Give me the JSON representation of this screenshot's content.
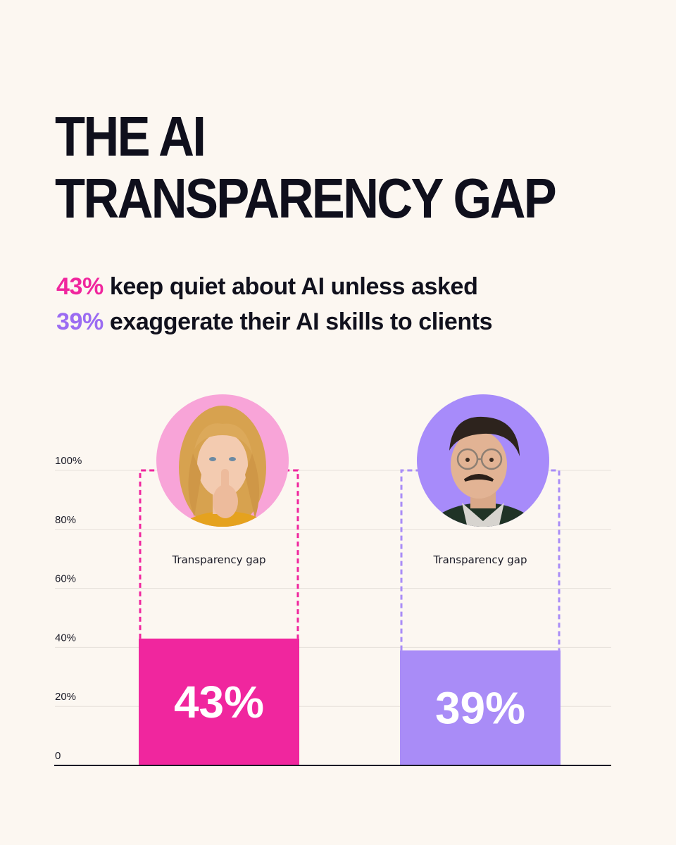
{
  "title": {
    "line1": "THE AI",
    "line2": "TRANSPARENCY GAP"
  },
  "subtitle": {
    "line1": {
      "pct": "43%",
      "text": " keep quiet about AI unless asked"
    },
    "line2": {
      "pct": "39%",
      "text": " exaggerate their AI skills to clients"
    }
  },
  "colors": {
    "pink": "#f0269e",
    "purple": "#a98cf7",
    "purple_text": "#9b6cf2",
    "pink_circle": "#f8a4d8",
    "purple_circle": "#a78bfa",
    "axis": "#1a1a26",
    "grid": "#e6e0da"
  },
  "chart_data": {
    "type": "bar",
    "title": "THE AI TRANSPARENCY GAP",
    "xlabel": "",
    "ylabel": "",
    "ylim": [
      0,
      100
    ],
    "yticks": [
      0,
      20,
      40,
      60,
      80,
      100
    ],
    "ytick_labels": [
      "0",
      "20%",
      "40%",
      "60%",
      "80%",
      "100%"
    ],
    "grid": true,
    "categories": [
      "keep quiet about AI unless asked",
      "exaggerate their AI skills to clients"
    ],
    "values": [
      43,
      39
    ],
    "value_labels": [
      "43%",
      "39%"
    ],
    "bar_colors": [
      "#f0269e",
      "#a98cf7"
    ],
    "gap_outline_to": 100,
    "annotations": [
      "Transparency gap",
      "Transparency gap"
    ],
    "portraits": [
      "woman-shushing-icon",
      "man-with-glasses-icon"
    ]
  }
}
